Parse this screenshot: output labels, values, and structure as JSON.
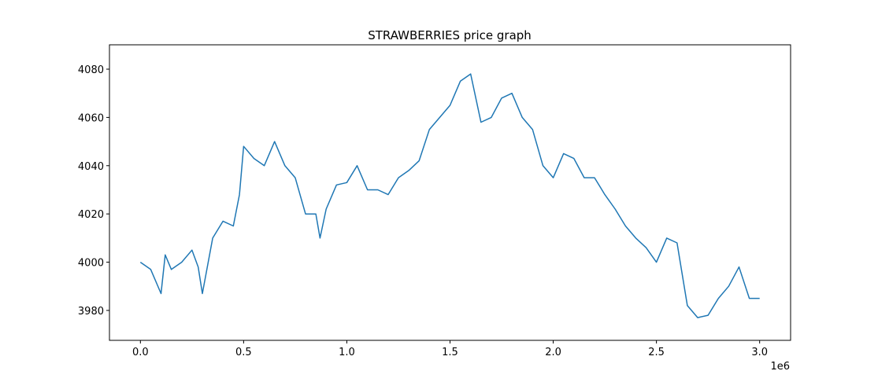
{
  "chart_data": {
    "type": "line",
    "title": "STRAWBERRIES price graph",
    "x": [
      0,
      50000,
      100000,
      120000,
      150000,
      200000,
      250000,
      280000,
      300000,
      350000,
      400000,
      450000,
      480000,
      500000,
      550000,
      600000,
      650000,
      700000,
      750000,
      800000,
      850000,
      870000,
      900000,
      950000,
      1000000,
      1050000,
      1100000,
      1150000,
      1200000,
      1250000,
      1300000,
      1350000,
      1400000,
      1450000,
      1500000,
      1550000,
      1600000,
      1650000,
      1700000,
      1750000,
      1800000,
      1850000,
      1900000,
      1950000,
      2000000,
      2050000,
      2100000,
      2150000,
      2200000,
      2250000,
      2300000,
      2350000,
      2400000,
      2450000,
      2500000,
      2550000,
      2600000,
      2650000,
      2700000,
      2750000,
      2800000,
      2850000,
      2900000,
      2950000,
      3000000
    ],
    "series": [
      {
        "color": "#1f77b4",
        "values": [
          4000,
          3997,
          3987,
          4003,
          3997,
          4000,
          4005,
          3998,
          3987,
          4010,
          4017,
          4015,
          4028,
          4048,
          4043,
          4040,
          4050,
          4040,
          4035,
          4020,
          4020,
          4010,
          4022,
          4032,
          4033,
          4040,
          4030,
          4030,
          4028,
          4035,
          4038,
          4042,
          4055,
          4060,
          4065,
          4075,
          4078,
          4058,
          4060,
          4068,
          4070,
          4060,
          4055,
          4040,
          4035,
          4045,
          4043,
          4035,
          4035,
          4028,
          4022,
          4015,
          4010,
          4006,
          4000,
          4010,
          4008,
          3982,
          3977,
          3978,
          3985,
          3990,
          3998,
          3985,
          3985
        ]
      }
    ],
    "xlim": [
      -150000,
      3150000
    ],
    "xticks": [
      {
        "value": 0,
        "label": "0.0"
      },
      {
        "value": 500000,
        "label": "0.5"
      },
      {
        "value": 1000000,
        "label": "1.0"
      },
      {
        "value": 1500000,
        "label": "1.5"
      },
      {
        "value": 2000000,
        "label": "2.0"
      },
      {
        "value": 2500000,
        "label": "2.5"
      },
      {
        "value": 3000000,
        "label": "3.0"
      }
    ],
    "x_offset_label": "1e6",
    "ylim": [
      3967.6,
      4090.1
    ],
    "yticks": [
      3980,
      4000,
      4020,
      4040,
      4060,
      4080
    ]
  }
}
